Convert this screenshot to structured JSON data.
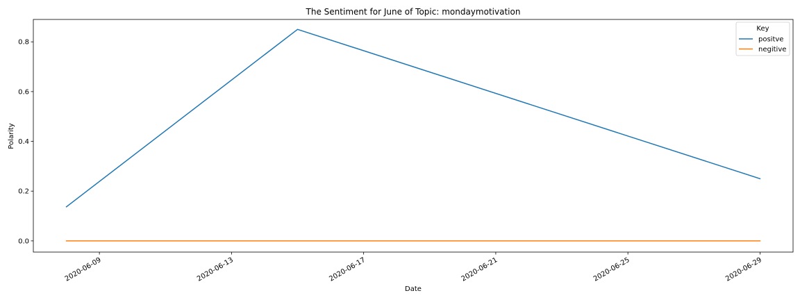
{
  "chart_data": {
    "type": "line",
    "title": "The Sentiment for June of Topic: mondaymotivation",
    "xlabel": "Date",
    "ylabel": "Polarity",
    "x_ticks": [
      "2020-06-09",
      "2020-06-13",
      "2020-06-17",
      "2020-06-21",
      "2020-06-25",
      "2020-06-29"
    ],
    "y_ticks": [
      "0.0",
      "0.2",
      "0.4",
      "0.6",
      "0.8"
    ],
    "xlim": [
      "2020-06-07",
      "2020-06-30"
    ],
    "ylim": [
      -0.045,
      0.89
    ],
    "grid": false,
    "legend": {
      "title": "Key",
      "position": "upper right"
    },
    "series": [
      {
        "name": "positve",
        "color": "#1f77b4",
        "points": [
          {
            "x": "2020-06-08",
            "y": 0.137
          },
          {
            "x": "2020-06-15",
            "y": 0.85
          },
          {
            "x": "2020-06-29",
            "y": 0.25
          }
        ]
      },
      {
        "name": "negitive",
        "color": "#ff7f0e",
        "points": [
          {
            "x": "2020-06-08",
            "y": 0.0
          },
          {
            "x": "2020-06-15",
            "y": 0.0
          },
          {
            "x": "2020-06-29",
            "y": 0.0
          }
        ]
      }
    ]
  }
}
